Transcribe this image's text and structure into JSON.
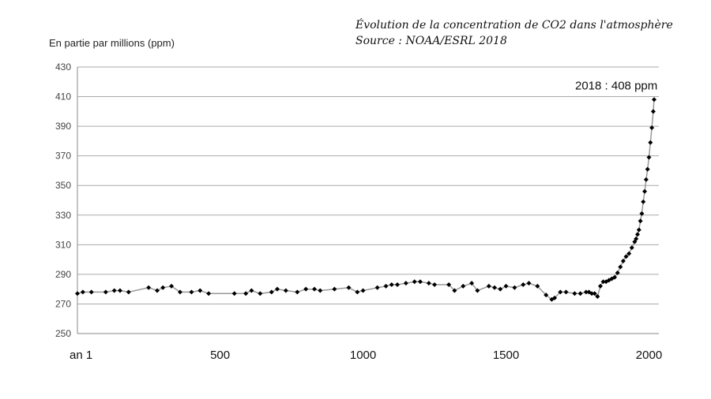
{
  "chart_data": {
    "type": "line",
    "title": "Évolution de la concentration de CO2 dans l'atmosphère",
    "subtitle": "Source : NOAA/ESRL 2018",
    "xlabel": "",
    "ylabel": "En partie par millions (ppm)",
    "xlim": [
      1,
      2018
    ],
    "ylim": [
      250,
      430
    ],
    "y_ticks": [
      250,
      270,
      290,
      310,
      330,
      350,
      370,
      390,
      410,
      430
    ],
    "x_ticks": [
      {
        "value": 1,
        "label": "an 1"
      },
      {
        "value": 500,
        "label": "500"
      },
      {
        "value": 1000,
        "label": "1000"
      },
      {
        "value": 1500,
        "label": "1500"
      },
      {
        "value": 2000,
        "label": "2000"
      }
    ],
    "grid": true,
    "annotation": {
      "text": "2018 : 408 ppm",
      "x": 2018,
      "y": 408
    },
    "colors": {
      "line": "#999999",
      "marker": "#000000",
      "grid": "#aaaaaa"
    },
    "series": [
      {
        "x": [
          1,
          20,
          50,
          100,
          130,
          150,
          180,
          250,
          280,
          300,
          330,
          360,
          400,
          430,
          460,
          550,
          590,
          610,
          640,
          680,
          700,
          730,
          770,
          800,
          830,
          850,
          900,
          950,
          980,
          1000,
          1050,
          1080,
          1100,
          1120,
          1150,
          1180,
          1200,
          1230,
          1250,
          1300,
          1320,
          1350,
          1380,
          1400,
          1440,
          1460,
          1480,
          1500,
          1530,
          1560,
          1580,
          1610,
          1640,
          1660,
          1670,
          1690,
          1710,
          1740,
          1760,
          1780,
          1790,
          1800,
          1810,
          1820,
          1830,
          1840,
          1850,
          1860,
          1870,
          1880,
          1890,
          1900,
          1910,
          1920,
          1930,
          1940,
          1950,
          1955,
          1960,
          1965,
          1970,
          1975,
          1980,
          1985,
          1990,
          1995,
          2000,
          2005,
          2010,
          2015,
          2018
        ],
        "values": [
          277,
          278,
          278,
          278,
          279,
          279,
          278,
          281,
          279,
          281,
          282,
          278,
          278,
          279,
          277,
          277,
          277,
          279,
          277,
          278,
          280,
          279,
          278,
          280,
          280,
          279,
          280,
          281,
          278,
          279,
          281,
          282,
          283,
          283,
          284,
          285,
          285,
          284,
          283,
          283,
          279,
          282,
          284,
          279,
          282,
          281,
          280,
          282,
          281,
          283,
          284,
          282,
          276,
          273,
          274,
          278,
          278,
          277,
          277,
          278,
          278,
          277,
          277,
          275,
          282,
          285,
          285,
          286,
          287,
          288,
          291,
          295,
          299,
          302,
          304,
          308,
          312,
          314,
          317,
          320,
          326,
          331,
          339,
          346,
          354,
          361,
          369,
          379,
          389,
          400,
          408
        ]
      }
    ]
  }
}
